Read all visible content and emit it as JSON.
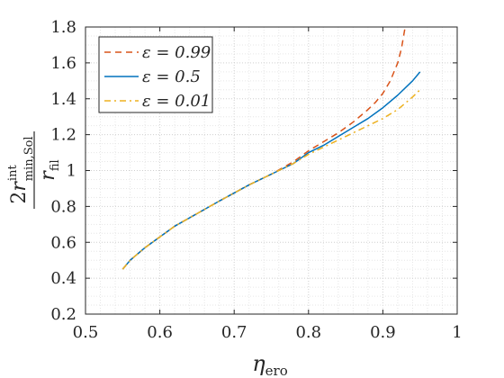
{
  "chart_data": {
    "type": "line",
    "title": "",
    "xlabel": {
      "base": "η",
      "sub": "ero"
    },
    "ylabel": {
      "numerator_prefix": "2",
      "numerator_var": "r",
      "numerator_sup": "int",
      "numerator_sub": "min,Sol",
      "denominator_var": "r",
      "denominator_sub": "fil"
    },
    "xlim": [
      0.5,
      1.0
    ],
    "ylim": [
      0.2,
      1.8
    ],
    "xticks": [
      0.5,
      0.6,
      0.7,
      0.8,
      0.9,
      1.0
    ],
    "xtick_labels": [
      "0.5",
      "0.6",
      "0.7",
      "0.8",
      "0.9",
      "1"
    ],
    "yticks": [
      0.2,
      0.4,
      0.6,
      0.8,
      1.0,
      1.2,
      1.4,
      1.6,
      1.8
    ],
    "ytick_labels": [
      "0.2",
      "0.4",
      "0.6",
      "0.8",
      "1",
      "1.2",
      "1.4",
      "1.6",
      "1.8"
    ],
    "grid": true,
    "grid_style": "dotted",
    "legend_position": "top-left",
    "series": [
      {
        "name": "ε = 0.99",
        "color": "#D95319",
        "dash": "dashed",
        "x": [
          0.55,
          0.56,
          0.58,
          0.6,
          0.62,
          0.65,
          0.68,
          0.7,
          0.72,
          0.75,
          0.78,
          0.8,
          0.82,
          0.84,
          0.86,
          0.88,
          0.89,
          0.9,
          0.91,
          0.92,
          0.925,
          0.93
        ],
        "y": [
          0.45,
          0.5,
          0.57,
          0.63,
          0.69,
          0.76,
          0.83,
          0.875,
          0.92,
          0.98,
          1.05,
          1.11,
          1.16,
          1.21,
          1.27,
          1.34,
          1.38,
          1.43,
          1.5,
          1.6,
          1.68,
          1.8
        ]
      },
      {
        "name": "ε = 0.5",
        "color": "#0072BD",
        "dash": "solid",
        "x": [
          0.55,
          0.56,
          0.58,
          0.6,
          0.62,
          0.65,
          0.68,
          0.7,
          0.72,
          0.75,
          0.78,
          0.8,
          0.82,
          0.84,
          0.86,
          0.88,
          0.9,
          0.92,
          0.94,
          0.95
        ],
        "y": [
          0.45,
          0.5,
          0.57,
          0.63,
          0.69,
          0.76,
          0.83,
          0.875,
          0.92,
          0.98,
          1.04,
          1.1,
          1.14,
          1.19,
          1.24,
          1.29,
          1.35,
          1.42,
          1.5,
          1.55
        ]
      },
      {
        "name": "ε = 0.01",
        "color": "#EDB120",
        "dash": "dashdot",
        "x": [
          0.55,
          0.56,
          0.58,
          0.6,
          0.62,
          0.65,
          0.68,
          0.7,
          0.72,
          0.75,
          0.78,
          0.8,
          0.82,
          0.84,
          0.86,
          0.88,
          0.9,
          0.92,
          0.94,
          0.95
        ],
        "y": [
          0.45,
          0.5,
          0.57,
          0.63,
          0.69,
          0.76,
          0.83,
          0.875,
          0.92,
          0.98,
          1.04,
          1.09,
          1.13,
          1.17,
          1.21,
          1.25,
          1.29,
          1.34,
          1.41,
          1.45
        ]
      }
    ]
  }
}
